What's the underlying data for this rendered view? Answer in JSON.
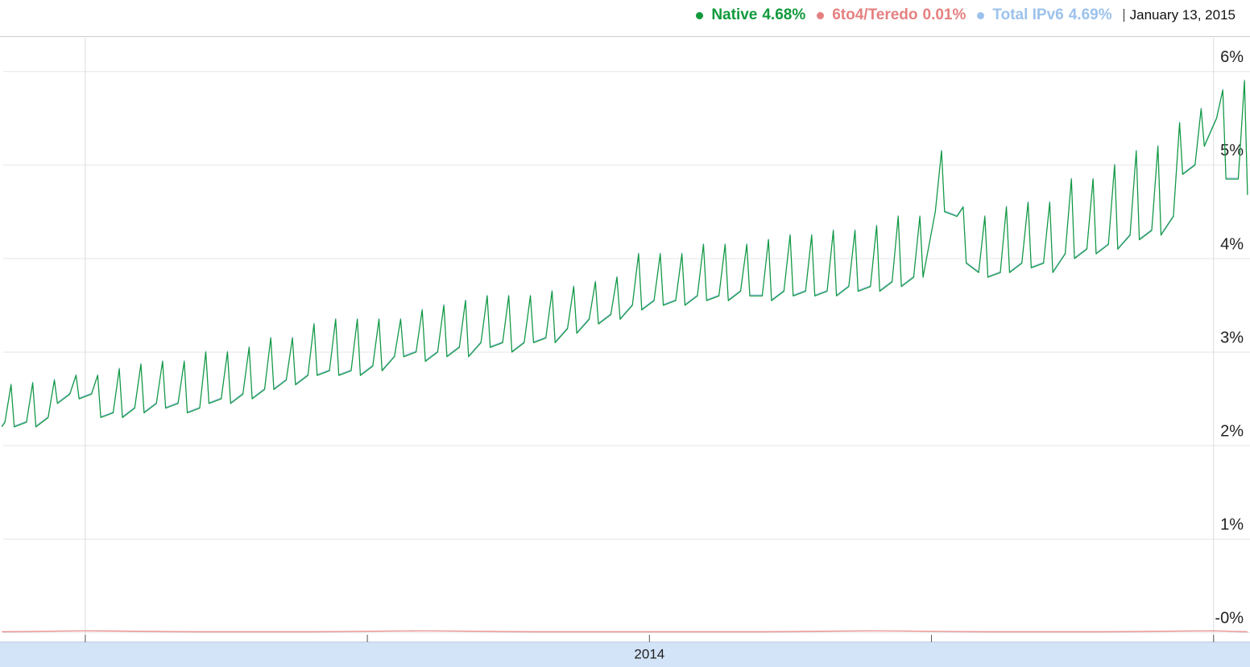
{
  "chart_data": {
    "type": "line",
    "legend": [
      {
        "series": 0,
        "latest": 4.68,
        "latest_label": "4.68%"
      },
      {
        "series": 1,
        "latest": 0.01,
        "latest_label": "0.01%"
      },
      {
        "series": 2,
        "latest": 4.69,
        "latest_label": "4.69%"
      }
    ],
    "date_label": "January 13, 2015",
    "x": [
      2013.926,
      2013.9288,
      2013.9342,
      2013.937,
      2013.9479,
      2013.9534,
      2013.9562,
      2013.9671,
      2013.9726,
      2013.9753,
      2013.9863,
      2013.9918,
      2013.9945,
      2014.0055,
      2014.011,
      2014.0137,
      2014.0247,
      2014.0301,
      2014.0329,
      2014.0438,
      2014.0493,
      2014.0521,
      2014.063,
      2014.0685,
      2014.0712,
      2014.0822,
      2014.0877,
      2014.0904,
      2014.1014,
      2014.1068,
      2014.1096,
      2014.1205,
      2014.126,
      2014.1288,
      2014.1397,
      2014.1452,
      2014.1479,
      2014.1589,
      2014.1644,
      2014.1671,
      2014.1781,
      2014.1836,
      2014.1863,
      2014.1973,
      2014.2027,
      2014.2055,
      2014.2164,
      2014.2219,
      2014.2247,
      2014.2356,
      2014.2411,
      2014.2438,
      2014.2548,
      2014.2603,
      2014.263,
      2014.274,
      2014.2795,
      2014.2822,
      2014.2932,
      2014.2986,
      2014.3014,
      2014.3123,
      2014.3178,
      2014.3205,
      2014.3315,
      2014.337,
      2014.3397,
      2014.3507,
      2014.3562,
      2014.3589,
      2014.3699,
      2014.3753,
      2014.3781,
      2014.389,
      2014.3945,
      2014.3973,
      2014.4082,
      2014.4137,
      2014.4164,
      2014.4274,
      2014.4329,
      2014.4356,
      2014.4466,
      2014.4521,
      2014.4548,
      2014.4658,
      2014.4712,
      2014.474,
      2014.4849,
      2014.4904,
      2014.4932,
      2014.5041,
      2014.5096,
      2014.5123,
      2014.5233,
      2014.5288,
      2014.5315,
      2014.5425,
      2014.5479,
      2014.5507,
      2014.5616,
      2014.5671,
      2014.5699,
      2014.5808,
      2014.5863,
      2014.589,
      2014.6,
      2014.6055,
      2014.6082,
      2014.6192,
      2014.6247,
      2014.6274,
      2014.6384,
      2014.6438,
      2014.6466,
      2014.6575,
      2014.663,
      2014.6658,
      2014.6767,
      2014.6822,
      2014.6849,
      2014.6959,
      2014.7014,
      2014.7041,
      2014.7151,
      2014.7205,
      2014.7233,
      2014.7342,
      2014.7397,
      2014.7425,
      2014.7534,
      2014.7589,
      2014.7616,
      2014.7726,
      2014.7781,
      2014.7808,
      2014.7918,
      2014.7973,
      2014.8,
      2014.811,
      2014.8164,
      2014.8192,
      2014.8301,
      2014.8356,
      2014.8384,
      2014.8493,
      2014.8548,
      2014.8575,
      2014.8685,
      2014.874,
      2014.8767,
      2014.8877,
      2014.8932,
      2014.8959,
      2014.9068,
      2014.9123,
      2014.9151,
      2014.926,
      2014.9315,
      2014.9342,
      2014.9452,
      2014.9507,
      2014.9534,
      2014.9644,
      2014.9699,
      2014.9726,
      2014.9836,
      2014.989,
      2014.9918,
      2015.0027,
      2015.0082,
      2015.011,
      2015.0219,
      2015.0274,
      2015.0301
    ],
    "series": [
      {
        "name": "Native",
        "color": "#109a3c",
        "values": [
          2.2,
          2.25,
          2.65,
          2.2,
          2.25,
          2.67,
          2.2,
          2.3,
          2.7,
          2.45,
          2.55,
          2.75,
          2.5,
          2.55,
          2.75,
          2.3,
          2.35,
          2.82,
          2.3,
          2.4,
          2.87,
          2.35,
          2.45,
          2.9,
          2.4,
          2.45,
          2.9,
          2.35,
          2.4,
          3.0,
          2.45,
          2.5,
          3.0,
          2.45,
          2.55,
          3.05,
          2.5,
          2.6,
          3.15,
          2.6,
          2.7,
          3.15,
          2.65,
          2.75,
          3.3,
          2.75,
          2.8,
          3.35,
          2.75,
          2.8,
          3.35,
          2.75,
          2.85,
          3.35,
          2.8,
          2.95,
          3.35,
          2.95,
          3.0,
          3.45,
          2.9,
          3.0,
          3.5,
          2.95,
          3.05,
          3.55,
          2.95,
          3.1,
          3.6,
          3.05,
          3.1,
          3.6,
          3.0,
          3.1,
          3.6,
          3.1,
          3.15,
          3.65,
          3.1,
          3.25,
          3.7,
          3.2,
          3.35,
          3.75,
          3.3,
          3.4,
          3.8,
          3.35,
          3.5,
          4.05,
          3.45,
          3.55,
          4.05,
          3.5,
          3.55,
          4.05,
          3.5,
          3.6,
          4.15,
          3.55,
          3.6,
          4.15,
          3.55,
          3.65,
          4.15,
          3.6,
          3.6,
          4.2,
          3.55,
          3.65,
          4.25,
          3.6,
          3.65,
          4.25,
          3.6,
          3.65,
          4.3,
          3.6,
          3.7,
          4.3,
          3.65,
          3.7,
          4.35,
          3.65,
          3.75,
          4.45,
          3.7,
          3.8,
          4.45,
          3.8,
          4.5,
          5.15,
          4.5,
          4.45,
          4.55,
          3.95,
          3.85,
          4.45,
          3.8,
          3.85,
          4.55,
          3.85,
          3.95,
          4.6,
          3.9,
          3.95,
          4.6,
          3.85,
          4.05,
          4.85,
          4.0,
          4.1,
          4.85,
          4.05,
          4.15,
          5.0,
          4.1,
          4.25,
          5.15,
          4.2,
          4.3,
          5.2,
          4.25,
          4.45,
          5.45,
          4.9,
          5.0,
          5.6,
          5.2,
          5.5,
          5.8,
          4.85,
          4.85,
          5.9,
          4.68
        ]
      },
      {
        "name": "6to4/Teredo",
        "color": "#e58080",
        "x": [
          2013.926,
          2014.0,
          2014.1,
          2014.2,
          2014.3,
          2014.4,
          2014.5,
          2014.6,
          2014.7,
          2014.8,
          2014.9,
          2015.0,
          2015.0301
        ],
        "values": [
          0.01,
          0.02,
          0.01,
          0.01,
          0.02,
          0.01,
          0.01,
          0.01,
          0.02,
          0.01,
          0.01,
          0.02,
          0.01
        ]
      },
      {
        "name": "Total IPv6",
        "color": "#9cc2ec",
        "values": [
          2.21,
          2.26,
          2.66,
          2.21,
          2.26,
          2.68,
          2.21,
          2.31,
          2.71,
          2.46,
          2.56,
          2.76,
          2.51,
          2.56,
          2.76,
          2.31,
          2.36,
          2.83,
          2.31,
          2.41,
          2.88,
          2.36,
          2.46,
          2.91,
          2.41,
          2.46,
          2.91,
          2.36,
          2.41,
          3.01,
          2.46,
          2.51,
          3.01,
          2.46,
          2.56,
          3.06,
          2.51,
          2.61,
          3.16,
          2.61,
          2.71,
          3.16,
          2.66,
          2.76,
          3.31,
          2.76,
          2.81,
          3.36,
          2.76,
          2.81,
          3.36,
          2.76,
          2.86,
          3.36,
          2.81,
          2.96,
          3.36,
          2.96,
          3.01,
          3.46,
          2.91,
          3.01,
          3.51,
          2.96,
          3.06,
          3.56,
          2.96,
          3.11,
          3.61,
          3.06,
          3.11,
          3.61,
          3.01,
          3.11,
          3.61,
          3.11,
          3.16,
          3.66,
          3.11,
          3.26,
          3.71,
          3.21,
          3.36,
          3.76,
          3.31,
          3.41,
          3.81,
          3.36,
          3.51,
          4.06,
          3.46,
          3.56,
          4.06,
          3.51,
          3.56,
          4.06,
          3.51,
          3.61,
          4.16,
          3.56,
          3.61,
          4.16,
          3.56,
          3.66,
          4.16,
          3.61,
          3.61,
          4.21,
          3.56,
          3.66,
          4.26,
          3.61,
          3.66,
          4.26,
          3.61,
          3.66,
          4.31,
          3.61,
          3.71,
          4.31,
          3.66,
          3.71,
          4.36,
          3.66,
          3.76,
          4.46,
          3.71,
          3.81,
          4.46,
          3.81,
          4.51,
          5.16,
          4.51,
          4.46,
          4.56,
          3.96,
          3.86,
          4.46,
          3.81,
          3.86,
          4.56,
          3.86,
          3.96,
          4.61,
          3.91,
          3.96,
          4.61,
          3.86,
          4.06,
          4.86,
          4.01,
          4.11,
          4.86,
          4.06,
          4.16,
          5.01,
          4.11,
          4.26,
          5.16,
          4.21,
          4.31,
          5.21,
          4.26,
          4.46,
          5.46,
          4.91,
          5.01,
          5.61,
          5.21,
          5.51,
          5.81,
          4.86,
          4.86,
          5.91,
          4.69
        ]
      }
    ],
    "xlim": [
      2013.9244,
      2015.0323
    ],
    "xticks": [
      2014,
      2014.25,
      2014.5,
      2014.75,
      2015
    ],
    "xgrid": [
      2014,
      2015
    ],
    "period_labels": [
      {
        "value": 2014,
        "label": "2014"
      }
    ],
    "ylim": [
      -0.1,
      6.36
    ],
    "yticks": [
      {
        "value": 0,
        "label": "-0%"
      },
      {
        "value": 1,
        "label": "1%"
      },
      {
        "value": 2,
        "label": "2%"
      },
      {
        "value": 3,
        "label": "3%"
      },
      {
        "value": 4,
        "label": "4%"
      },
      {
        "value": 5,
        "label": "5%"
      },
      {
        "value": 6,
        "label": "6%"
      }
    ],
    "grid": true
  }
}
